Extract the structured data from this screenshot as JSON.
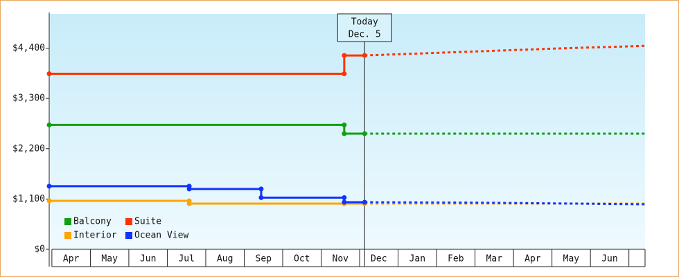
{
  "chart_data": {
    "type": "step-line",
    "ylim": [
      0,
      5150
    ],
    "yticks": [
      {
        "value": 0,
        "label": "$0"
      },
      {
        "value": 1100,
        "label": "$1,100"
      },
      {
        "value": 2200,
        "label": "$2,200"
      },
      {
        "value": 3300,
        "label": "$3,300"
      },
      {
        "value": 4400,
        "label": "$4,400"
      }
    ],
    "xlim": [
      -0.07,
      15.42
    ],
    "xticks": [
      {
        "value": 0,
        "label": "Apr"
      },
      {
        "value": 1,
        "label": "May"
      },
      {
        "value": 2,
        "label": "Jun"
      },
      {
        "value": 3,
        "label": "Jul"
      },
      {
        "value": 4,
        "label": "Aug"
      },
      {
        "value": 5,
        "label": "Sep"
      },
      {
        "value": 6,
        "label": "Oct"
      },
      {
        "value": 7,
        "label": "Nov"
      },
      {
        "value": 8,
        "label": "Dec"
      },
      {
        "value": 9,
        "label": "Jan"
      },
      {
        "value": 10,
        "label": "Feb"
      },
      {
        "value": 11,
        "label": "Mar"
      },
      {
        "value": 12,
        "label": "Apr"
      },
      {
        "value": 13,
        "label": "May"
      },
      {
        "value": 14,
        "label": "Jun"
      }
    ],
    "annotation": {
      "text": [
        "Today",
        "Dec. 5"
      ],
      "x": 8.13
    },
    "series": [
      {
        "name": "Balcony",
        "color": "#11a011",
        "x": [
          -0.07,
          7.6,
          7.6,
          8.13
        ],
        "values": [
          2720,
          2720,
          2530,
          2530
        ],
        "forecast": {
          "x": [
            8.13,
            15.42
          ],
          "values": [
            2530,
            2530
          ]
        }
      },
      {
        "name": "Suite",
        "color": "#ff3300",
        "x": [
          -0.07,
          7.6,
          7.6,
          8.13
        ],
        "values": [
          3840,
          3840,
          4240,
          4240
        ],
        "forecast": {
          "x": [
            8.13,
            9.46,
            13.06,
            15.42
          ],
          "values": [
            4240,
            4280,
            4390,
            4450
          ]
        }
      },
      {
        "name": "Interior",
        "color": "#ffa500",
        "x": [
          -0.07,
          3.57,
          3.57,
          7.6,
          8.13
        ],
        "values": [
          1060,
          1060,
          1000,
          1000,
          1000
        ],
        "forecast": {
          "x": [
            8.13,
            15.42
          ],
          "values": [
            1000,
            1000
          ]
        }
      },
      {
        "name": "Ocean View",
        "color": "#1133ff",
        "x": [
          -0.07,
          3.57,
          3.57,
          5.44,
          5.44,
          7.6,
          7.6,
          8.13
        ],
        "values": [
          1380,
          1380,
          1320,
          1320,
          1130,
          1130,
          1030,
          1030
        ],
        "forecast": {
          "x": [
            8.13,
            11.0,
            15.42
          ],
          "values": [
            1030,
            1020,
            985
          ]
        }
      }
    ]
  }
}
